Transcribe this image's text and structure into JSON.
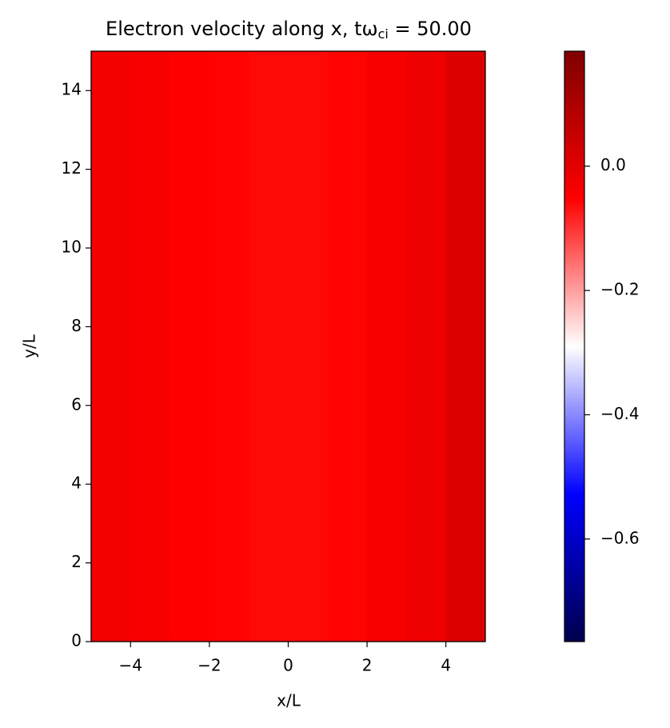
{
  "chart_data": {
    "type": "heatmap",
    "title": {
      "main": "Electron velocity along x, tω",
      "sub": "ci",
      "tail": " = 50.00"
    },
    "x_label": "x/L",
    "y_label": "y/L",
    "xlim": [
      -5,
      5
    ],
    "xticks": [
      {
        "value": -4,
        "label": "−4"
      },
      {
        "value": -2,
        "label": "−2"
      },
      0,
      2,
      4
    ],
    "ylim": [
      0,
      15
    ],
    "yticks": [
      0,
      2,
      4,
      6,
      8,
      10,
      12,
      14
    ],
    "values": [
      [
        -0.03,
        -0.04,
        -0.05,
        -0.055,
        -0.06,
        -0.06,
        -0.055,
        -0.04,
        -0.02,
        0.01
      ]
    ],
    "colormap": "seismic",
    "colorbar": {
      "lim": [
        -0.765,
        0.185
      ],
      "ticks": [
        {
          "value": 0.0,
          "label": "0.0"
        },
        {
          "value": -0.2,
          "label": "−0.2"
        },
        {
          "value": -0.4,
          "label": "−0.4"
        },
        {
          "value": -0.6,
          "label": "−0.6"
        }
      ]
    }
  }
}
